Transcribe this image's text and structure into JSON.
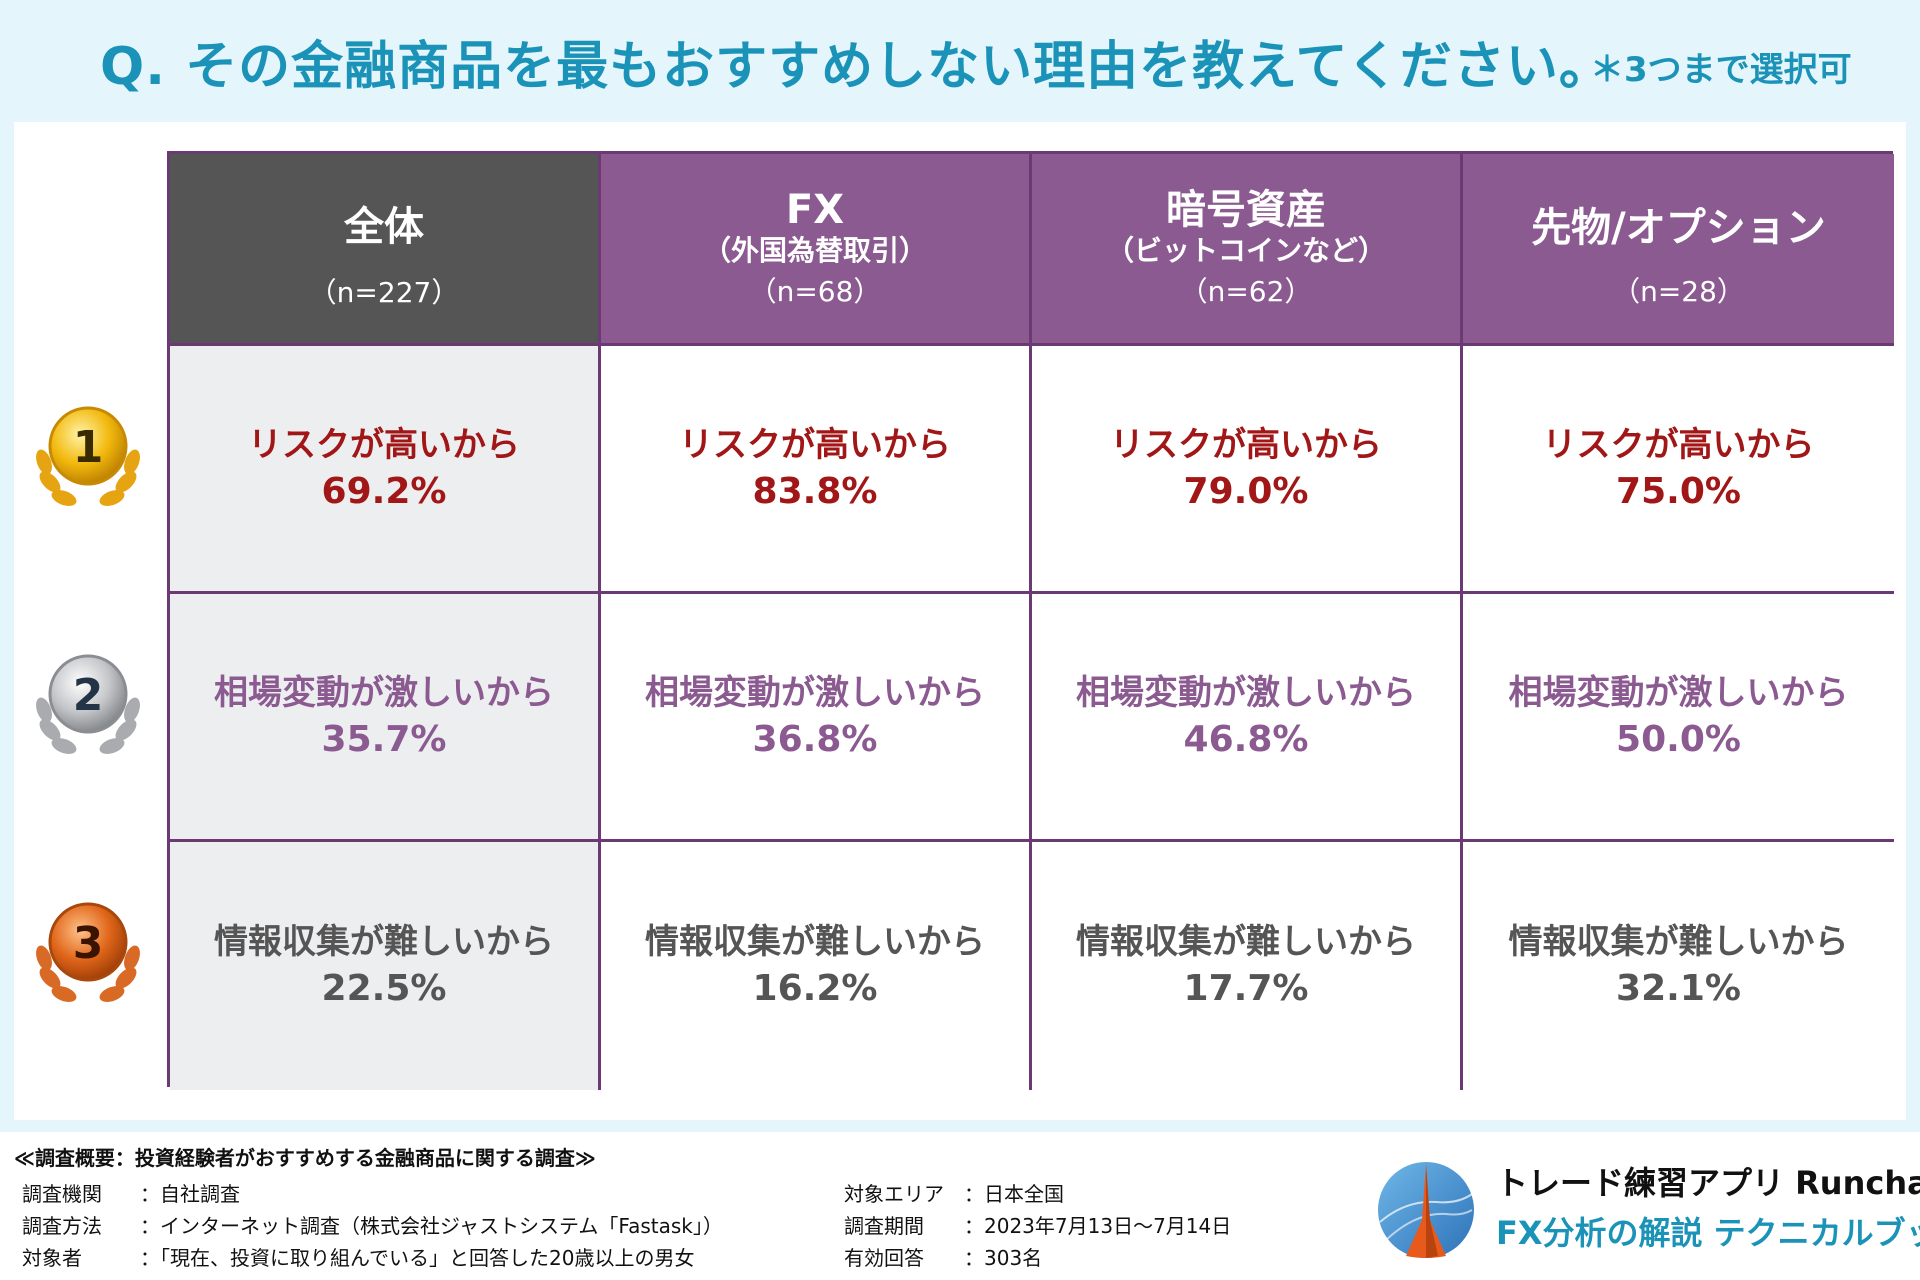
{
  "header": {
    "title": "Q. その金融商品を最もおすすめしない理由を教えてください。",
    "note": "＊3つまで選択可"
  },
  "columns": [
    {
      "title": "全体",
      "subtitle": "",
      "n": "（n=227）"
    },
    {
      "title": "FX",
      "subtitle": "（外国為替取引）",
      "n": "（n=68）"
    },
    {
      "title": "暗号資産",
      "subtitle": "（ビットコインなど）",
      "n": "（n=62）"
    },
    {
      "title": "先物/オプション",
      "subtitle": "",
      "n": "（n=28）"
    }
  ],
  "ranks": [
    {
      "label": "1",
      "medal": "gold-medal-icon",
      "color": "#a11616",
      "reason": "リスクが高いから",
      "values": [
        "69.2%",
        "83.8%",
        "79.0%",
        "75.0%"
      ]
    },
    {
      "label": "2",
      "medal": "silver-medal-icon",
      "color": "#8b5a91",
      "reason": "相場変動が激しいから",
      "values": [
        "35.7%",
        "36.8%",
        "46.8%",
        "50.0%"
      ]
    },
    {
      "label": "3",
      "medal": "bronze-medal-icon",
      "color": "#555555",
      "reason": "情報収集が難しいから",
      "values": [
        "22.5%",
        "16.2%",
        "17.7%",
        "32.1%"
      ]
    }
  ],
  "survey": {
    "title": "≪調査概要：投資経験者がおすすめする金融商品に関する調査≫",
    "left": [
      {
        "key": "調査機関",
        "value": "：自社調査"
      },
      {
        "key": "調査方法",
        "value": "：インターネット調査（株式会社ジャストシステム「Fastask」）"
      },
      {
        "key": "対象者",
        "value": "：「現在、投資に取り組んでいる」と回答した20歳以上の男女"
      }
    ],
    "right": [
      {
        "key": "対象エリア",
        "value": "：日本全国"
      },
      {
        "key": "調査期間",
        "value": "：2023年7月13日〜7月14日"
      },
      {
        "key": "有効回答",
        "value": "：303名"
      }
    ]
  },
  "brand": {
    "line1": "トレード練習アプリ  Runcha",
    "line2": "FX分析の解説  テクニカルブック",
    "logo": "runcha-logo-icon"
  },
  "colors": {
    "accent": "#1b93b8",
    "header_purple": "#8b5a91",
    "header_gray": "#555555",
    "border": "#6b3a74",
    "rank1": "#a11616",
    "rank2": "#8b5a91",
    "rank3": "#555555"
  }
}
